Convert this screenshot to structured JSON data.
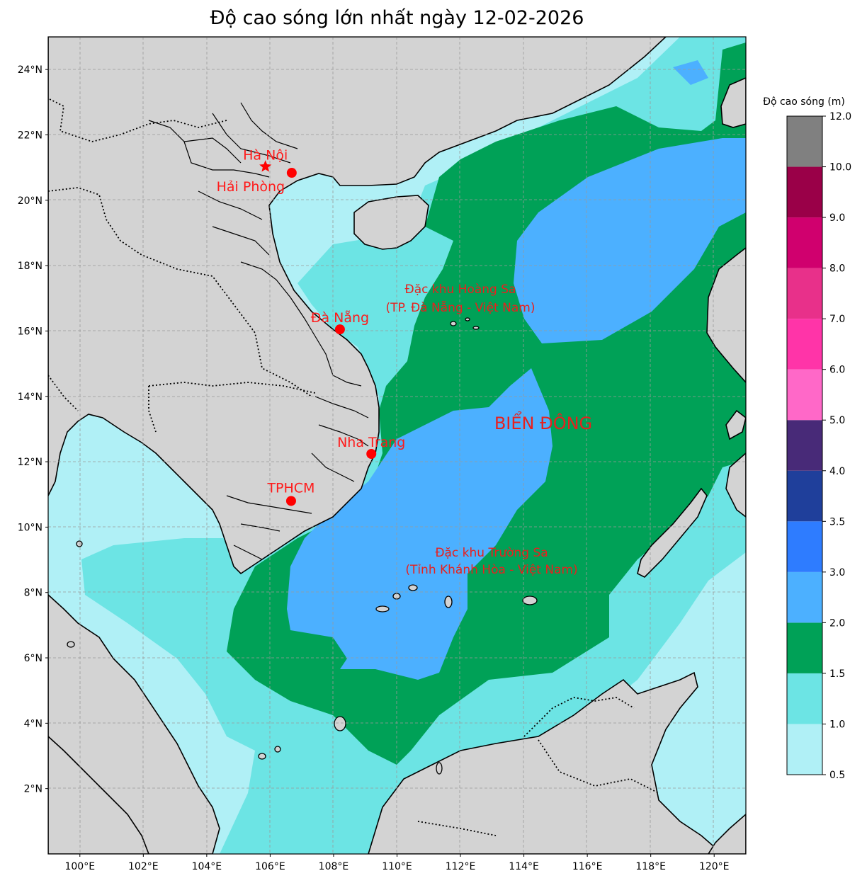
{
  "title": "Độ cao sóng lớn nhất ngày 12-02-2026",
  "colors": {
    "land": "#d3d3d3",
    "background_sea": "#b0f0f6",
    "city_marker": "#ff0000"
  },
  "axes": {
    "x_ticks": [
      "100°E",
      "102°E",
      "104°E",
      "106°E",
      "108°E",
      "110°E",
      "112°E",
      "114°E",
      "116°E",
      "118°E",
      "120°E"
    ],
    "y_ticks": [
      "24°N",
      "22°N",
      "20°N",
      "18°N",
      "16°N",
      "14°N",
      "12°N",
      "10°N",
      "8°N",
      "6°N",
      "4°N",
      "2°N"
    ],
    "lon_range": [
      99,
      121
    ],
    "lat_range": [
      0,
      25
    ],
    "grid": true
  },
  "cities": [
    {
      "name": "Hà Nội",
      "lon": 105.85,
      "lat": 21.03,
      "marker": "star"
    },
    {
      "name": "Hải Phòng",
      "lon": 106.68,
      "lat": 20.84,
      "marker": "circle"
    },
    {
      "name": "Đà Nẵng",
      "lon": 108.2,
      "lat": 16.05,
      "marker": "circle"
    },
    {
      "name": "Nha Trang",
      "lon": 109.19,
      "lat": 12.24,
      "marker": "circle"
    },
    {
      "name": "TPHCM",
      "lon": 106.66,
      "lat": 10.8,
      "marker": "circle"
    }
  ],
  "regions": {
    "hoang_sa_line1": "Đặc khu Hoàng Sa",
    "hoang_sa_line2": "(TP. Đà Nẵng - Việt Nam)",
    "truong_sa_line1": "Đặc khu Trường Sa",
    "truong_sa_line2": "(Tỉnh Khánh Hòa - Việt Nam)",
    "sea_name": "BIỂN ĐÔNG"
  },
  "colorbar": {
    "title": "Độ cao sóng (m)",
    "levels": [
      {
        "from": "0.5",
        "to": "1.0",
        "color": "#b0f0f6"
      },
      {
        "from": "1.0",
        "to": "1.5",
        "color": "#6ce4e4"
      },
      {
        "from": "1.5",
        "to": "2.0",
        "color": "#00a157"
      },
      {
        "from": "2.0",
        "to": "3.0",
        "color": "#4cb0ff"
      },
      {
        "from": "3.0",
        "to": "3.5",
        "color": "#2e7cff"
      },
      {
        "from": "3.5",
        "to": "4.0",
        "color": "#1f3f9b"
      },
      {
        "from": "4.0",
        "to": "5.0",
        "color": "#482a78"
      },
      {
        "from": "5.0",
        "to": "6.0",
        "color": "#ff68c8"
      },
      {
        "from": "6.0",
        "to": "7.0",
        "color": "#ff34a8"
      },
      {
        "from": "7.0",
        "to": "8.0",
        "color": "#e8308a"
      },
      {
        "from": "8.0",
        "to": "9.0",
        "color": "#d0006e"
      },
      {
        "from": "9.0",
        "to": "10.0",
        "color": "#9a0048"
      },
      {
        "from": "10.0",
        "to": "12.0",
        "color": "#808080"
      }
    ],
    "tick_labels": [
      "0.5",
      "1.0",
      "1.5",
      "2.0",
      "3.0",
      "3.5",
      "4.0",
      "5.0",
      "6.0",
      "7.0",
      "8.0",
      "9.0",
      "10.0",
      "12.0"
    ]
  }
}
